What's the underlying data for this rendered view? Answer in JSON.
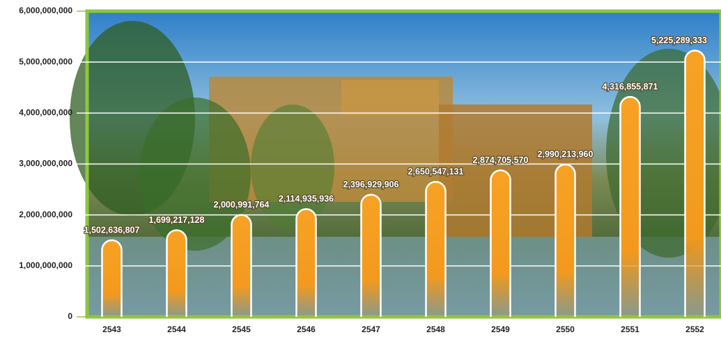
{
  "chart_data": {
    "type": "bar",
    "categories": [
      "2543",
      "2544",
      "2545",
      "2546",
      "2547",
      "2548",
      "2549",
      "2550",
      "2551",
      "2552"
    ],
    "values": [
      1502636807,
      1699217128,
      2000991764,
      2114935936,
      2396929906,
      2650547131,
      2874705570,
      2990213960,
      4316855871,
      5225289333
    ],
    "value_labels": [
      "1,502,636,807",
      "1,699,217,128",
      "2,000,991,764",
      "2,114,935,936",
      "2,396,929,906",
      "2,650,547,131",
      "2,874,705,570",
      "2,990,213,960",
      "4,316,855,871",
      "5,225,289,333"
    ],
    "color": "#f39a1e",
    "ylim": [
      0,
      6000000000
    ],
    "yticks": [
      0,
      {
        "value": 1000000000,
        "label": "1,000,000,000"
      },
      {
        "value": 2000000000,
        "label": "2,000,000,000"
      },
      {
        "value": 3000000000,
        "label": "3,000,000,000"
      },
      {
        "value": 4000000000,
        "label": "4,000,000,000"
      },
      {
        "value": 5000000000,
        "label": "5,000,000,000"
      },
      {
        "value": 6000000000,
        "label": "6,000,000,000"
      }
    ],
    "grid": true
  }
}
